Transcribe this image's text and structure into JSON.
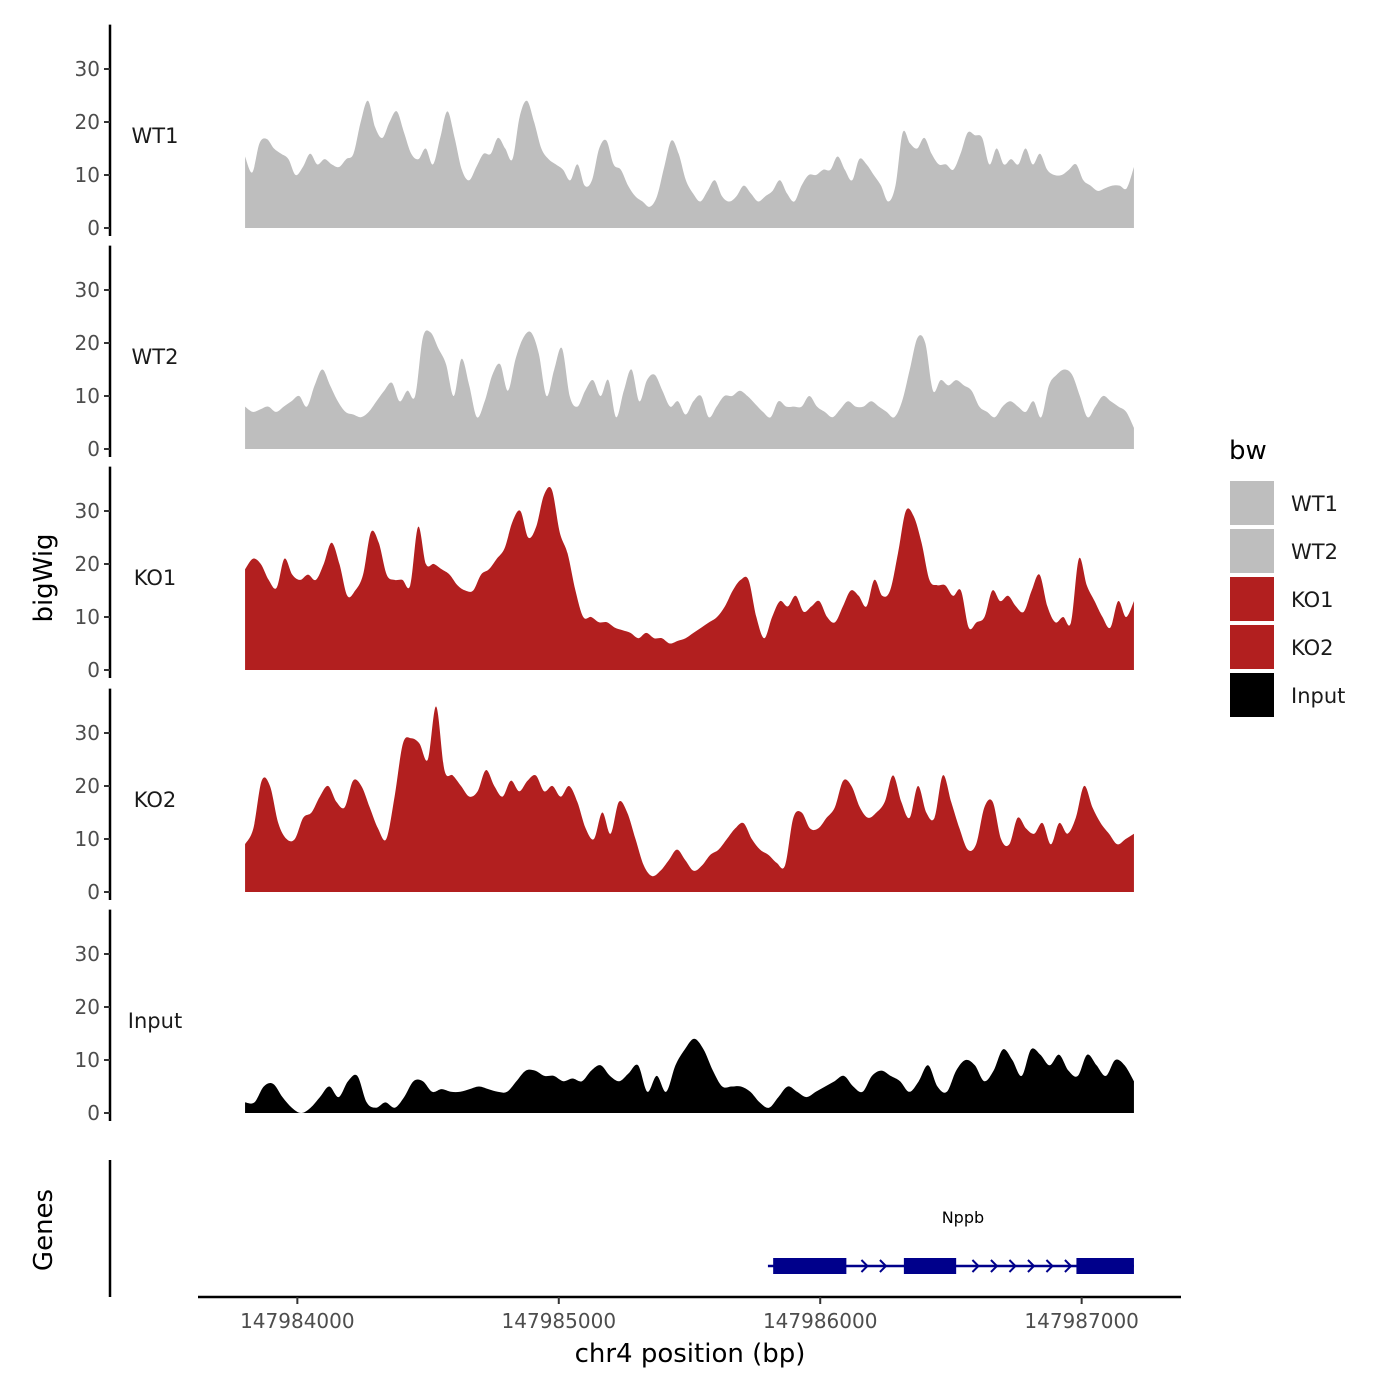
{
  "chart_data": {
    "type": "area",
    "y_axis_label": "bigWig",
    "genes_axis_label": "Genes",
    "x_axis_label": "chr4 position (bp)",
    "x_range": [
      147983620,
      147987380
    ],
    "data_x_range": [
      147983800,
      147987200
    ],
    "y_range": [
      0,
      38
    ],
    "y_ticks": [
      "0",
      "10",
      "20",
      "30"
    ],
    "x_ticks": [
      "147984000",
      "147985000",
      "147986000",
      "147987000"
    ],
    "legend": {
      "title": "bw",
      "entries": [
        {
          "label": "WT1",
          "color": "#bebebe"
        },
        {
          "label": "WT2",
          "color": "#bebebe"
        },
        {
          "label": "KO1",
          "color": "#b21f1f"
        },
        {
          "label": "KO2",
          "color": "#b21f1f"
        },
        {
          "label": "Input",
          "color": "#000000"
        }
      ]
    },
    "series": [
      {
        "name": "WT1",
        "color": "#bebebe",
        "values": [
          13.5,
          10.5,
          16,
          16.8,
          15,
          14,
          13,
          10,
          11.5,
          14,
          12,
          13,
          12,
          11.5,
          13,
          14,
          20,
          24,
          19,
          17,
          20,
          22,
          18,
          14,
          13,
          15,
          12,
          17,
          22,
          17,
          11,
          9,
          11.5,
          14,
          14,
          17,
          15,
          13,
          21,
          24,
          20,
          15,
          13,
          12,
          11,
          9,
          12,
          8,
          9,
          15,
          16.5,
          12,
          11,
          8,
          6,
          5,
          4,
          6,
          11.5,
          16.5,
          14,
          9,
          6.5,
          5,
          7,
          9,
          6,
          5,
          6,
          8,
          6.5,
          5,
          6,
          7,
          9,
          6.5,
          5,
          8,
          10,
          10,
          11,
          11,
          13.5,
          11,
          9,
          13,
          12,
          10,
          8,
          5,
          8,
          18,
          16,
          15,
          17,
          14,
          12,
          12,
          11,
          14,
          18,
          17.5,
          17,
          12,
          15,
          12,
          13,
          12,
          15,
          12,
          14,
          11,
          10,
          10,
          11,
          12,
          9,
          8,
          7,
          7.5,
          8,
          8,
          7.5,
          11.5
        ]
      },
      {
        "name": "WT2",
        "color": "#bebebe",
        "values": [
          8,
          7,
          7.5,
          8,
          7,
          8,
          9,
          10,
          8,
          12,
          15,
          12,
          9,
          7,
          6.5,
          6,
          7,
          9,
          11,
          12.5,
          9,
          11,
          10,
          21,
          22,
          19,
          16,
          10,
          17,
          12,
          6,
          9,
          14,
          16,
          11,
          17,
          21,
          22,
          18,
          10,
          15,
          19,
          10,
          8,
          11,
          13,
          10,
          13,
          6,
          11,
          15,
          9,
          13,
          14,
          11,
          8,
          9,
          6.5,
          9,
          10,
          6,
          8,
          10,
          10,
          11,
          10,
          8.5,
          7,
          6,
          9,
          8,
          8,
          8,
          10,
          8,
          7,
          6,
          7.5,
          9,
          8,
          8,
          9,
          8,
          7,
          6,
          9,
          15,
          21,
          20,
          11,
          13,
          12,
          13,
          12,
          11,
          8,
          7,
          6,
          8,
          9,
          8,
          7,
          9,
          6,
          12,
          14,
          15,
          14,
          10,
          6,
          8,
          10,
          9,
          8,
          7,
          4
        ]
      },
      {
        "name": "KO1",
        "color": "#b21f1f",
        "values": [
          19,
          21,
          20,
          17,
          15.5,
          21,
          18,
          17,
          18,
          17,
          20,
          24,
          20,
          14,
          15,
          18,
          26,
          24,
          18,
          17,
          17,
          16,
          27,
          20,
          20,
          19,
          18,
          16,
          15,
          15,
          18,
          19,
          21,
          23,
          28,
          30,
          25,
          27,
          33,
          34,
          26,
          22,
          15,
          10,
          10,
          9,
          9,
          8,
          7.5,
          7,
          6,
          7,
          6,
          6,
          5,
          5.5,
          6,
          7,
          8,
          9,
          10,
          12,
          15,
          17,
          17,
          10,
          6,
          10,
          13,
          12,
          14,
          11,
          12,
          13,
          10,
          9,
          12,
          15,
          14,
          12,
          17,
          14,
          15,
          22,
          30,
          29,
          24,
          17,
          16,
          16,
          14,
          15,
          8,
          9,
          10,
          15,
          13,
          14,
          12,
          11,
          15,
          18,
          12,
          9,
          10,
          9,
          21,
          16,
          13,
          10,
          8,
          13,
          10,
          13
        ]
      },
      {
        "name": "KO2",
        "color": "#b21f1f",
        "values": [
          9,
          12,
          21,
          20,
          13,
          10,
          10,
          14,
          15,
          18,
          20,
          17,
          16,
          21,
          20,
          16,
          12,
          10,
          18,
          28,
          29,
          28,
          25,
          35,
          23,
          22,
          20,
          18,
          19,
          23,
          20,
          18,
          21,
          19,
          21,
          22,
          19,
          20,
          18,
          20,
          17,
          12,
          10,
          15,
          11,
          17,
          15,
          10,
          5,
          3,
          4,
          6,
          8,
          6,
          4,
          5,
          7,
          8,
          10,
          12,
          13,
          10,
          8,
          7,
          5.5,
          5,
          14,
          15,
          12,
          12,
          14,
          16,
          21,
          20,
          16,
          14,
          15,
          17,
          22,
          17,
          14,
          20,
          15,
          14,
          22,
          17,
          12,
          8,
          9,
          16,
          17,
          10,
          9,
          14,
          12,
          11,
          13,
          9,
          13,
          11,
          14,
          20,
          16,
          13,
          11,
          9,
          10,
          11
        ]
      },
      {
        "name": "Input",
        "color": "#000000",
        "values": [
          2,
          2,
          5,
          5.5,
          3,
          1,
          0,
          1,
          3,
          5,
          3,
          6,
          7,
          2,
          1,
          2,
          1,
          3,
          6,
          6,
          4,
          4.5,
          4,
          4,
          4.5,
          5,
          4.5,
          4,
          4,
          6,
          8,
          8,
          7,
          7,
          6,
          6.5,
          6,
          8,
          9,
          7,
          6,
          7.5,
          9,
          4,
          7,
          4,
          9,
          12,
          14,
          12,
          8,
          5,
          5,
          5,
          4,
          2,
          1,
          3,
          5,
          4,
          3,
          4,
          5,
          6,
          7,
          5,
          4,
          7,
          8,
          7,
          6,
          4,
          6,
          9,
          5,
          4,
          8,
          10,
          9,
          6,
          8,
          12,
          10,
          7,
          12,
          11,
          9,
          11,
          8,
          7,
          11,
          9,
          7,
          10,
          9,
          6
        ]
      }
    ],
    "genes": [
      {
        "name": "Nppb",
        "color": "#00008b",
        "start": 147985800,
        "end": 147987200,
        "strand": "+",
        "exons": [
          [
            147985820,
            147986100
          ],
          [
            147986320,
            147986520
          ],
          [
            147986980,
            147987200
          ]
        ]
      }
    ]
  }
}
